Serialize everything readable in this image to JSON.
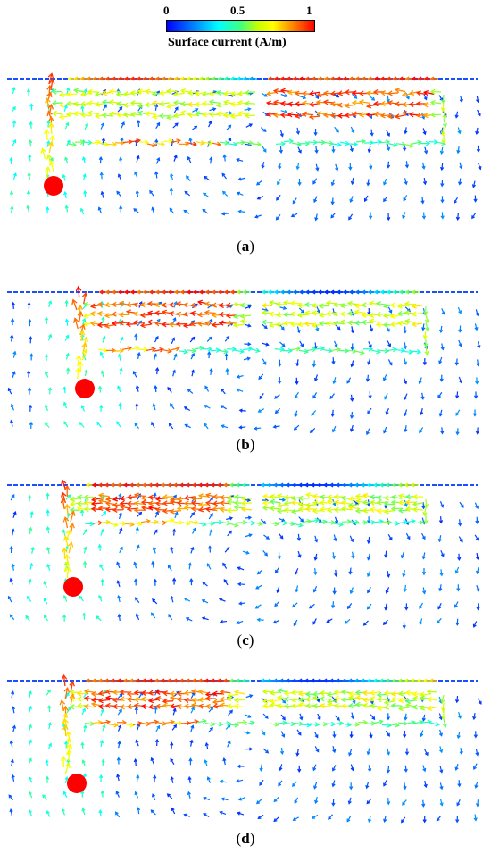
{
  "colorbar": {
    "title": "Surface current (A/m)",
    "ticks": [
      "0",
      "0.5",
      "1"
    ],
    "colors": [
      "#0000ff",
      "#0080ff",
      "#00ffff",
      "#40ff80",
      "#c8ff00",
      "#ffff00",
      "#ff8000",
      "#ff0000"
    ]
  },
  "panels": [
    {
      "caption_letter": "a"
    },
    {
      "caption_letter": "b"
    },
    {
      "caption_letter": "c"
    },
    {
      "caption_letter": "d"
    }
  ],
  "feed_color": "#ff0000",
  "baseline_color": "#1a4fff"
}
